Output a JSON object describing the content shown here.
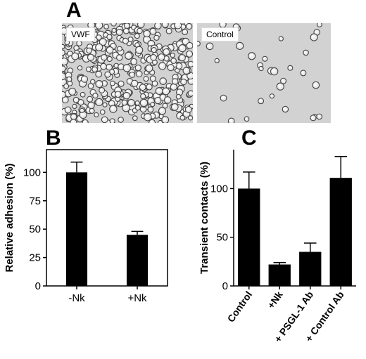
{
  "panels": {
    "a": {
      "letter": "A",
      "images": [
        {
          "label": "VWF"
        },
        {
          "label": "Control"
        }
      ]
    },
    "b": {
      "letter": "B"
    },
    "c": {
      "letter": "C"
    }
  },
  "chart_data": [
    {
      "type": "bar",
      "title": "",
      "xlabel": "",
      "ylabel": "Relative adhesion  (%)",
      "categories": [
        "-Nk",
        "+Nk"
      ],
      "values": [
        100,
        45
      ],
      "errors": [
        9,
        3
      ],
      "ylim": [
        0,
        120
      ],
      "yticks": [
        0,
        25,
        50,
        75,
        100
      ],
      "grid": false,
      "bar_color": "#000000"
    },
    {
      "type": "bar",
      "title": "",
      "xlabel": "",
      "ylabel": "Transient contacts (%)",
      "categories": [
        "Control",
        "+Nk",
        "+ PSGL-1 Ab",
        "+ Control Ab"
      ],
      "values": [
        100,
        22,
        35,
        111
      ],
      "errors": [
        17,
        2,
        9,
        22
      ],
      "ylim": [
        0,
        140
      ],
      "yticks": [
        0,
        50,
        100
      ],
      "grid": false,
      "bar_color": "#000000"
    }
  ]
}
